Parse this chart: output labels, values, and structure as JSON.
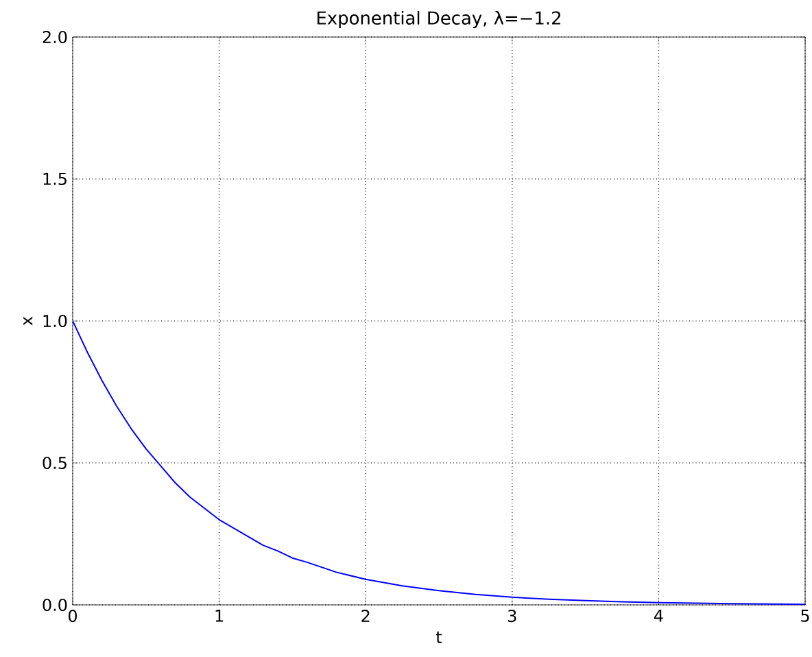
{
  "chart_data": {
    "type": "line",
    "title": "Exponential Decay, λ=−1.2",
    "xlabel": "t",
    "ylabel": "x",
    "x": [
      0,
      0.1,
      0.2,
      0.3,
      0.4,
      0.5,
      0.6,
      0.7,
      0.8,
      0.9,
      1,
      1.1,
      1.2,
      1.3,
      1.4,
      1.5,
      1.6,
      1.8,
      2,
      2.25,
      2.5,
      2.75,
      3,
      3.25,
      3.5,
      3.75,
      4,
      4.25,
      4.5,
      4.75,
      5
    ],
    "series": [
      {
        "color": "#0000ff",
        "values": [
          1.0,
          0.89,
          0.79,
          0.7,
          0.62,
          0.55,
          0.49,
          0.43,
          0.38,
          0.34,
          0.3,
          0.27,
          0.24,
          0.21,
          0.19,
          0.165,
          0.15,
          0.115,
          0.09,
          0.067,
          0.05,
          0.037,
          0.027,
          0.02,
          0.015,
          0.011,
          0.008,
          0.006,
          0.004,
          0.003,
          0.002
        ]
      }
    ],
    "xlim": [
      0,
      5
    ],
    "ylim": [
      0,
      2
    ],
    "xticks": [
      0,
      1,
      2,
      3,
      4,
      5
    ],
    "yticks": [
      {
        "value": 0,
        "label": "0.0"
      },
      {
        "value": 0.5,
        "label": "0.5"
      },
      {
        "value": 1,
        "label": "1.0"
      },
      {
        "value": 1.5,
        "label": "1.5"
      },
      {
        "value": 2,
        "label": "2.0"
      }
    ],
    "grid": true,
    "marker": "none",
    "line_style": "solid"
  }
}
